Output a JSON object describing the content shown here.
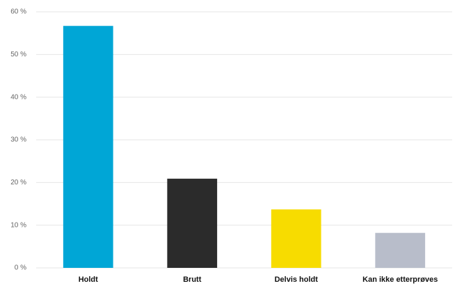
{
  "chart_data": {
    "type": "bar",
    "categories": [
      "Holdt",
      "Brutt",
      "Delvis holdt",
      "Kan ikke etterprøves"
    ],
    "values": [
      56.7,
      20.9,
      13.7,
      8.2
    ],
    "colors": [
      "#00a6d6",
      "#2b2b2b",
      "#f7dc00",
      "#b8bdca"
    ],
    "ylim": [
      0,
      60
    ],
    "yticks": [
      {
        "value": 0,
        "label": "0 %"
      },
      {
        "value": 10,
        "label": "10 %"
      },
      {
        "value": 20,
        "label": "20 %"
      },
      {
        "value": 30,
        "label": "30 %"
      },
      {
        "value": 40,
        "label": "40 %"
      },
      {
        "value": 50,
        "label": "50 %"
      },
      {
        "value": 60,
        "label": "60 %"
      }
    ],
    "grid": true
  }
}
